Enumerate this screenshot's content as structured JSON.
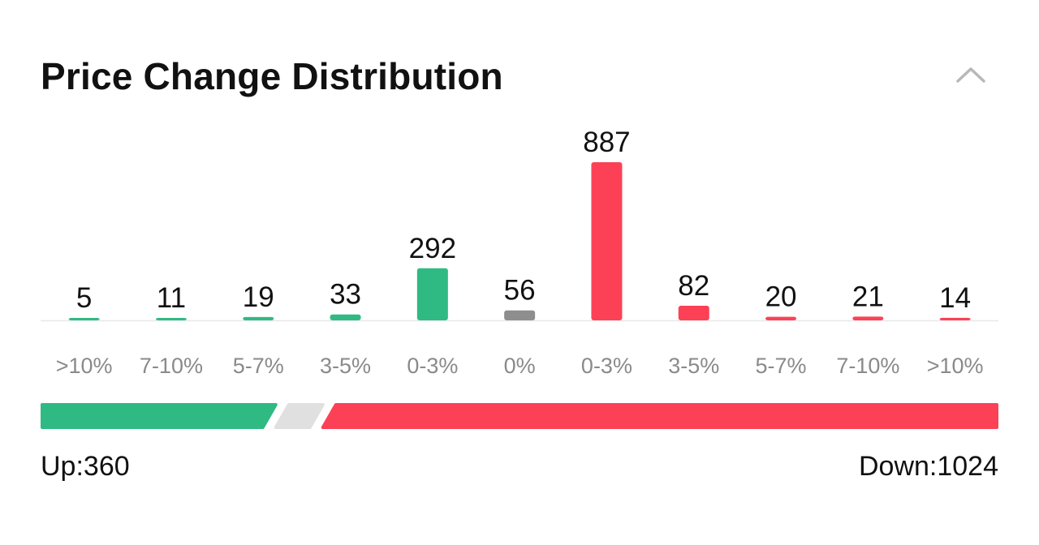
{
  "header": {
    "title": "Price Change Distribution",
    "collapse_icon": "chevron-up-icon"
  },
  "colors": {
    "up": "#2fba84",
    "flat": "#8e8e8e",
    "down": "#fc4156",
    "flat_segment": "#e0e0e0",
    "axis_line": "#e8e8e8",
    "value_text": "#111111",
    "tick_text": "#8a8a8a"
  },
  "chart_data": {
    "type": "bar",
    "title": "Price Change Distribution",
    "categories": [
      ">10%",
      "7-10%",
      "5-7%",
      "3-5%",
      "0-3%",
      "0%",
      "0-3%",
      "3-5%",
      "5-7%",
      "7-10%",
      ">10%"
    ],
    "values": [
      5,
      11,
      19,
      33,
      292,
      56,
      887,
      82,
      20,
      21,
      14
    ],
    "groups": [
      "up",
      "up",
      "up",
      "up",
      "up",
      "flat",
      "down",
      "down",
      "down",
      "down",
      "down"
    ],
    "ylim": [
      0,
      887
    ],
    "grid": false,
    "legend": "none"
  },
  "summary": {
    "up_label": "Up:360",
    "down_label": "Down:1024",
    "up": 360,
    "flat": 56,
    "down": 1024
  }
}
